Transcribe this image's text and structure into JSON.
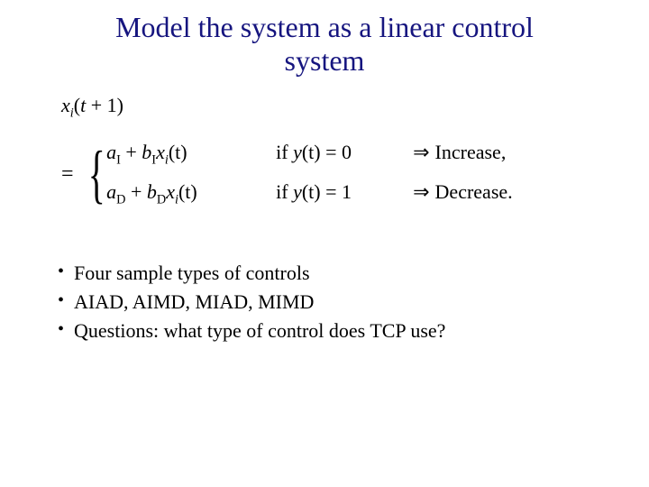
{
  "title_color": "#16157f",
  "title_line1": "Model the system as a linear control",
  "title_line2": "system",
  "equation": {
    "lhs": {
      "var": "x",
      "sub": "i",
      "arg_open": "(",
      "t": "t",
      "plus": " + 1",
      "arg_close": ")"
    },
    "eq": "=",
    "cases": [
      {
        "a": "a",
        "a_sub": "I",
        "plus": " + ",
        "b": "b",
        "b_sub": "I",
        "x": "x",
        "x_sub": "i",
        "arg": "(t)",
        "cond_prefix": "if ",
        "cond_y": "y",
        "cond_arg": "(t)",
        "cond_eq": " = 0",
        "arrow": "⇒",
        "label": "Increase,"
      },
      {
        "a": "a",
        "a_sub": "D",
        "plus": " + ",
        "b": "b",
        "b_sub": "D",
        "x": "x",
        "x_sub": "i",
        "arg": "(t)",
        "cond_prefix": "if ",
        "cond_y": "y",
        "cond_arg": "(t)",
        "cond_eq": " = 1",
        "arrow": "⇒",
        "label": "Decrease."
      }
    ]
  },
  "bullets": [
    "Four sample types of controls",
    "AIAD, AIMD, MIAD, MIMD",
    "Questions: what type of control does TCP use?"
  ]
}
